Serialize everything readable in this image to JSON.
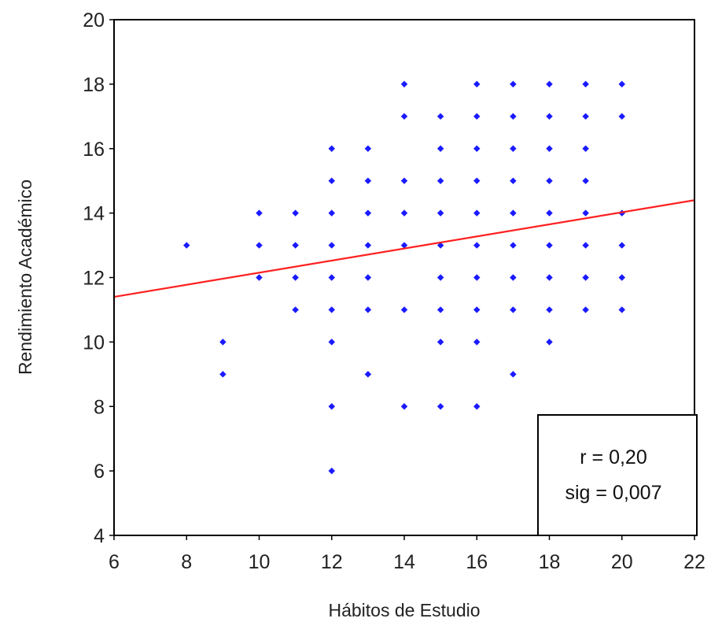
{
  "chart_data": {
    "type": "scatter",
    "xlabel": "Hábitos de Estudio",
    "ylabel": "Rendimiento Académico",
    "xlim": [
      6,
      22
    ],
    "ylim": [
      4,
      20
    ],
    "xticks": [
      "6",
      "8",
      "10",
      "12",
      "14",
      "16",
      "18",
      "20",
      "22"
    ],
    "yticks": [
      "4",
      "6",
      "8",
      "10",
      "12",
      "14",
      "16",
      "18",
      "20"
    ],
    "grid": false,
    "point_color": "#1a1aff",
    "line_color": "#ff2020",
    "points": [
      [
        8,
        13
      ],
      [
        9,
        10
      ],
      [
        9,
        9
      ],
      [
        10,
        14
      ],
      [
        10,
        13
      ],
      [
        10,
        12
      ],
      [
        11,
        14
      ],
      [
        11,
        13
      ],
      [
        11,
        12
      ],
      [
        11,
        11
      ],
      [
        12,
        16
      ],
      [
        12,
        15
      ],
      [
        12,
        14
      ],
      [
        12,
        13
      ],
      [
        12,
        12
      ],
      [
        12,
        11
      ],
      [
        12,
        10
      ],
      [
        12,
        8
      ],
      [
        12,
        6
      ],
      [
        13,
        16
      ],
      [
        13,
        15
      ],
      [
        13,
        14
      ],
      [
        13,
        13
      ],
      [
        13,
        12
      ],
      [
        13,
        11
      ],
      [
        13,
        9
      ],
      [
        14,
        18
      ],
      [
        14,
        17
      ],
      [
        14,
        15
      ],
      [
        14,
        14
      ],
      [
        14,
        13
      ],
      [
        14,
        11
      ],
      [
        14,
        8
      ],
      [
        15,
        17
      ],
      [
        15,
        16
      ],
      [
        15,
        15
      ],
      [
        15,
        14
      ],
      [
        15,
        13
      ],
      [
        15,
        12
      ],
      [
        15,
        11
      ],
      [
        15,
        10
      ],
      [
        15,
        8
      ],
      [
        16,
        18
      ],
      [
        16,
        17
      ],
      [
        16,
        16
      ],
      [
        16,
        15
      ],
      [
        16,
        14
      ],
      [
        16,
        13
      ],
      [
        16,
        12
      ],
      [
        16,
        11
      ],
      [
        16,
        10
      ],
      [
        16,
        8
      ],
      [
        17,
        18
      ],
      [
        17,
        17
      ],
      [
        17,
        16
      ],
      [
        17,
        15
      ],
      [
        17,
        14
      ],
      [
        17,
        13
      ],
      [
        17,
        12
      ],
      [
        17,
        11
      ],
      [
        17,
        9
      ],
      [
        18,
        18
      ],
      [
        18,
        17
      ],
      [
        18,
        16
      ],
      [
        18,
        15
      ],
      [
        18,
        14
      ],
      [
        18,
        13
      ],
      [
        18,
        12
      ],
      [
        18,
        11
      ],
      [
        18,
        10
      ],
      [
        19,
        18
      ],
      [
        19,
        17
      ],
      [
        19,
        16
      ],
      [
        19,
        15
      ],
      [
        19,
        14
      ],
      [
        19,
        13
      ],
      [
        19,
        12
      ],
      [
        19,
        11
      ],
      [
        20,
        18
      ],
      [
        20,
        17
      ],
      [
        20,
        14
      ],
      [
        20,
        13
      ],
      [
        20,
        12
      ],
      [
        20,
        11
      ]
    ],
    "fit_line": {
      "x": [
        6,
        22
      ],
      "y": [
        11.4,
        14.4
      ]
    },
    "annotation": {
      "line1": "r = 0,20",
      "line2": "sig = 0,007",
      "placement": "bottom-right"
    }
  }
}
